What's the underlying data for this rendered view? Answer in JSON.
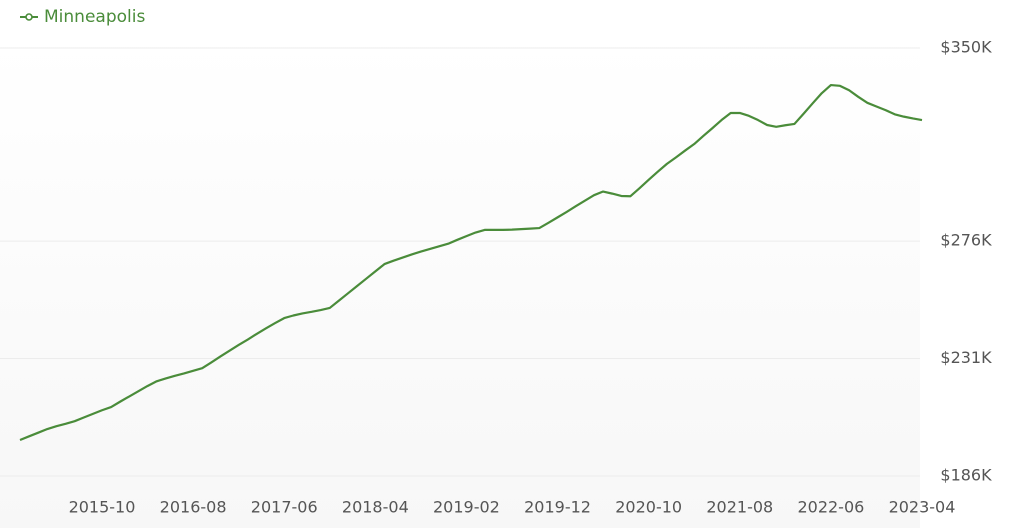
{
  "chart_data": {
    "type": "line",
    "x": [
      "2015-01",
      "2015-02",
      "2015-03",
      "2015-04",
      "2015-05",
      "2015-06",
      "2015-07",
      "2015-08",
      "2015-09",
      "2015-10",
      "2015-11",
      "2015-12",
      "2016-01",
      "2016-02",
      "2016-03",
      "2016-04",
      "2016-05",
      "2016-06",
      "2016-07",
      "2016-08",
      "2016-09",
      "2016-10",
      "2016-11",
      "2016-12",
      "2017-01",
      "2017-02",
      "2017-03",
      "2017-04",
      "2017-05",
      "2017-06",
      "2017-07",
      "2017-08",
      "2017-09",
      "2017-10",
      "2017-11",
      "2017-12",
      "2018-01",
      "2018-02",
      "2018-03",
      "2018-04",
      "2018-05",
      "2018-06",
      "2018-07",
      "2018-08",
      "2018-09",
      "2018-10",
      "2018-11",
      "2018-12",
      "2019-01",
      "2019-02",
      "2019-03",
      "2019-04",
      "2019-05",
      "2019-06",
      "2019-07",
      "2019-08",
      "2019-09",
      "2019-10",
      "2019-11",
      "2019-12",
      "2020-01",
      "2020-02",
      "2020-03",
      "2020-04",
      "2020-05",
      "2020-06",
      "2020-07",
      "2020-08",
      "2020-09",
      "2020-10",
      "2020-11",
      "2020-12",
      "2021-01",
      "2021-02",
      "2021-03",
      "2021-04",
      "2021-05",
      "2021-06",
      "2021-07",
      "2021-08",
      "2021-09",
      "2021-10",
      "2021-11",
      "2021-12",
      "2022-01",
      "2022-02",
      "2022-03",
      "2022-04",
      "2022-05",
      "2022-06",
      "2022-07",
      "2022-08",
      "2022-09",
      "2022-10",
      "2022-11",
      "2022-12",
      "2023-01",
      "2023-02",
      "2023-03",
      "2023-04"
    ],
    "series": [
      {
        "name": "Minneapolis",
        "color": "#4a8c3a",
        "values": [
          199800,
          201200,
          202600,
          204000,
          205100,
          206000,
          207000,
          208400,
          209800,
          211200,
          212400,
          214500,
          216500,
          218500,
          220500,
          222300,
          223400,
          224400,
          225300,
          226300,
          227300,
          229500,
          231800,
          234000,
          236200,
          238300,
          240500,
          242600,
          244600,
          246500,
          247500,
          248300,
          248900,
          249600,
          250400,
          253200,
          256000,
          258800,
          261600,
          264400,
          267200,
          268500,
          269700,
          270900,
          272000,
          273000,
          274000,
          275000,
          276500,
          277900,
          279300,
          280300,
          280300,
          280300,
          280400,
          280600,
          280800,
          281000,
          283000,
          285100,
          287200,
          289400,
          291500,
          293600,
          295000,
          294200,
          293300,
          293200,
          296300,
          299500,
          302600,
          305600,
          308100,
          310700,
          313200,
          316300,
          319300,
          322400,
          325100,
          325100,
          324000,
          322400,
          320500,
          319800,
          320400,
          320900,
          324800,
          328800,
          332700,
          335800,
          335500,
          333800,
          331300,
          329000,
          327600,
          326200,
          324600,
          323700,
          323000,
          322400
        ]
      }
    ],
    "ylim": [
      186000,
      350000
    ],
    "yticks": [
      {
        "value": 186000,
        "label": "$186K"
      },
      {
        "value": 231000,
        "label": "$231K"
      },
      {
        "value": 276000,
        "label": "$276K"
      },
      {
        "value": 350000,
        "label": "$350K"
      }
    ],
    "grid": true
  }
}
